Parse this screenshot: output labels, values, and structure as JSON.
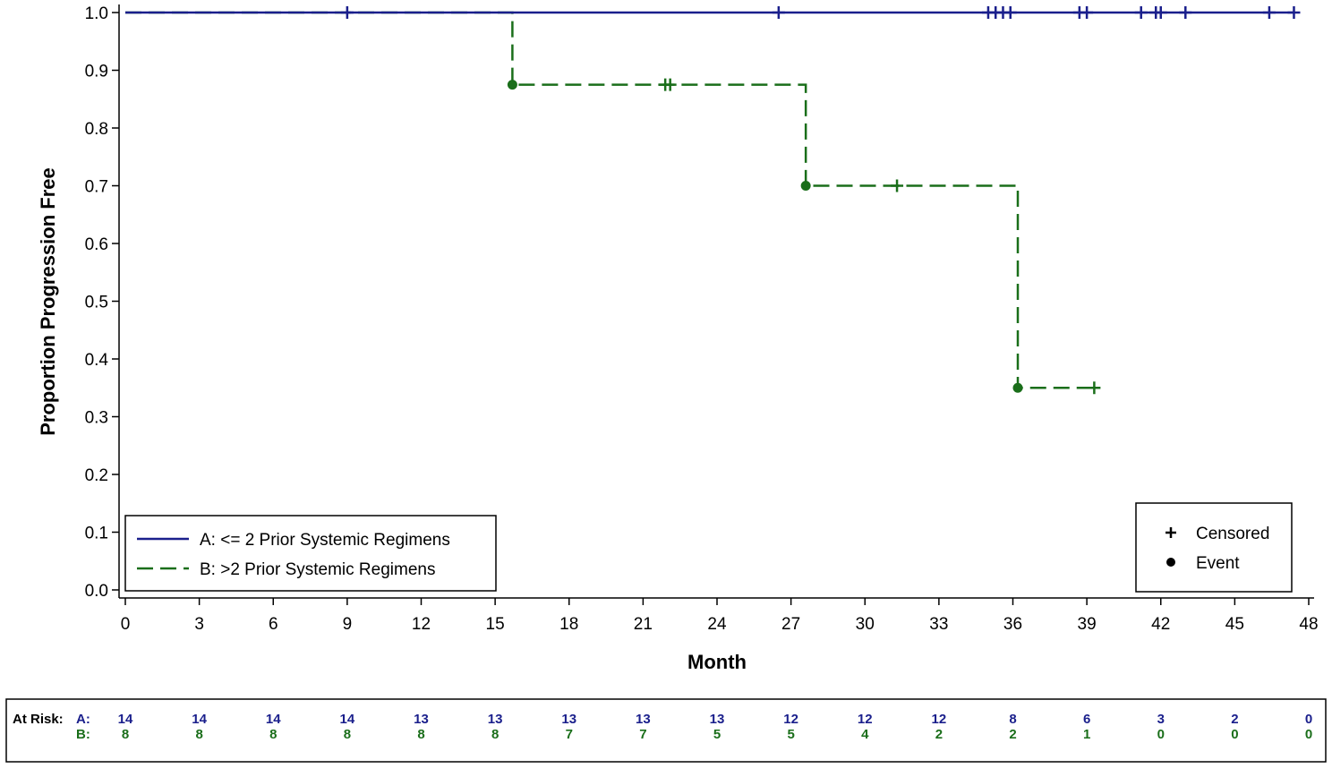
{
  "chart_data": {
    "type": "line",
    "subtype": "kaplan-meier",
    "title": "",
    "xlabel": "Month",
    "ylabel": "Proportion Progression Free",
    "xlim": [
      0,
      48
    ],
    "ylim": [
      0,
      1
    ],
    "x_ticks": [
      "0",
      "3",
      "6",
      "9",
      "12",
      "15",
      "18",
      "21",
      "24",
      "27",
      "30",
      "33",
      "36",
      "39",
      "42",
      "45",
      "48"
    ],
    "y_ticks": [
      "0.0",
      "0.1",
      "0.2",
      "0.3",
      "0.4",
      "0.5",
      "0.6",
      "0.7",
      "0.8",
      "0.9",
      "1.0"
    ],
    "grid": false,
    "series": [
      {
        "key": "A",
        "name": "A: <= 2 Prior Systemic Regimens",
        "color": "#1a1f8c",
        "line_style": "solid",
        "steps": [
          [
            0,
            1.0
          ],
          [
            47.4,
            1.0
          ]
        ],
        "censored": [
          [
            9.0,
            1.0
          ],
          [
            26.5,
            1.0
          ],
          [
            35.0,
            1.0
          ],
          [
            35.3,
            1.0
          ],
          [
            35.6,
            1.0
          ],
          [
            35.9,
            1.0
          ],
          [
            38.7,
            1.0
          ],
          [
            39.0,
            1.0
          ],
          [
            41.2,
            1.0
          ],
          [
            41.8,
            1.0
          ],
          [
            42.0,
            1.0
          ],
          [
            43.0,
            1.0
          ],
          [
            46.4,
            1.0
          ],
          [
            47.4,
            1.0
          ]
        ],
        "events": []
      },
      {
        "key": "B",
        "name": "B: >2 Prior Systemic Regimens",
        "color": "#1a6e1a",
        "line_style": "dashed",
        "steps": [
          [
            0,
            1.0
          ],
          [
            15.7,
            0.875
          ],
          [
            27.6,
            0.7
          ],
          [
            36.2,
            0.35
          ],
          [
            39.3,
            0.35
          ]
        ],
        "censored": [
          [
            21.9,
            0.875
          ],
          [
            22.1,
            0.875
          ],
          [
            31.3,
            0.7
          ],
          [
            39.3,
            0.35
          ]
        ],
        "events": [
          [
            15.7,
            0.875
          ],
          [
            27.6,
            0.7
          ],
          [
            36.2,
            0.35
          ]
        ]
      }
    ],
    "symbol_legend": [
      {
        "symbol": "+",
        "label": "Censored"
      },
      {
        "symbol": "●",
        "label": "Event"
      }
    ],
    "at_risk": {
      "label": "At Risk:",
      "times": [
        0,
        3,
        6,
        9,
        12,
        15,
        18,
        21,
        24,
        27,
        30,
        33,
        36,
        39,
        42,
        45,
        48
      ],
      "rows": [
        {
          "key": "A:",
          "color": "#1a1f8c",
          "values": [
            "14",
            "14",
            "14",
            "14",
            "13",
            "13",
            "13",
            "13",
            "13",
            "12",
            "12",
            "12",
            "8",
            "6",
            "3",
            "2",
            "0"
          ]
        },
        {
          "key": "B:",
          "color": "#1a6e1a",
          "values": [
            "8",
            "8",
            "8",
            "8",
            "8",
            "8",
            "7",
            "7",
            "5",
            "5",
            "4",
            "2",
            "2",
            "1",
            "0",
            "0",
            "0"
          ]
        }
      ]
    }
  }
}
